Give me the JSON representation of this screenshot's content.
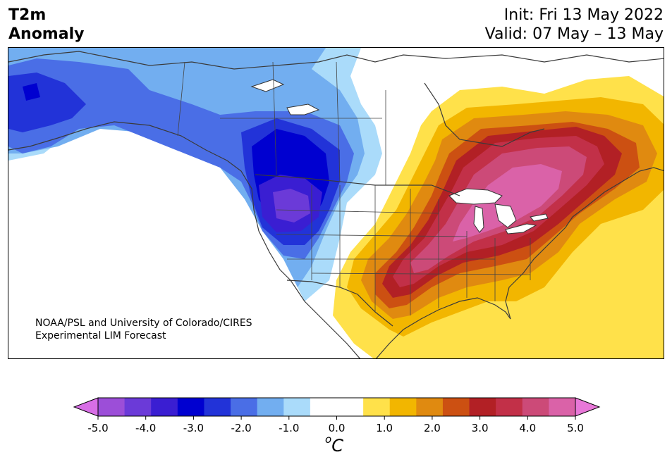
{
  "header": {
    "title_line1": "T2m",
    "title_line2": "Anomaly",
    "init": "Init: Fri 13 May 2022",
    "valid": "Valid: 07 May – 13 May"
  },
  "credit": {
    "line1": "NOAA/PSL and University of Colorado/CIRES",
    "line2": "Experimental LIM Forecast"
  },
  "colorbar": {
    "unit_base": "C",
    "unit_sup": "o",
    "ticks": [
      "-5.0",
      "-4.0",
      "-3.0",
      "-2.0",
      "-1.0",
      "0.0",
      "1.0",
      "2.0",
      "3.0",
      "4.0",
      "5.0"
    ],
    "colors": [
      "#d86ee6",
      "#9c4ed8",
      "#6b3ad8",
      "#3a1ed2",
      "#0000d0",
      "#2233d8",
      "#4a6ee6",
      "#72aef0",
      "#aadbfa",
      "#ffffff",
      "#ffffff",
      "#ffe14a",
      "#f2b600",
      "#e08a10",
      "#cc5012",
      "#b22025",
      "#c23048",
      "#cc4a78",
      "#da62a8",
      "#e878d8"
    ]
  },
  "map": {
    "colors": {
      "cold1": "#aadbfa",
      "cold2": "#72aef0",
      "cold3": "#4a6ee6",
      "cold4": "#2233d8",
      "cold5": "#0000d0",
      "cold6": "#3a1ed2",
      "cold7": "#6b3ad8",
      "warm1": "#ffe14a",
      "warm2": "#f2b600",
      "warm3": "#e08a10",
      "warm4": "#cc5012",
      "warm5": "#b22025",
      "warm6": "#c23048",
      "warm7": "#cc4a78",
      "warm8": "#da62a8"
    }
  }
}
